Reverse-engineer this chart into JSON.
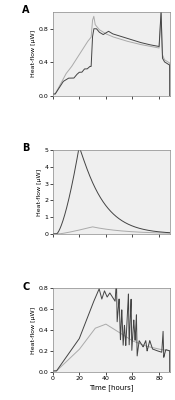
{
  "panel_labels": [
    "A",
    "B",
    "C"
  ],
  "xlabel": "Time [hours]",
  "ylabel": "Heat-flow [μW]",
  "xlim": [
    0,
    88
  ],
  "xticks": [
    0,
    20,
    40,
    60,
    80
  ],
  "panel_A": {
    "ylim": [
      0.0,
      1.0
    ],
    "yticks": [
      0.0,
      0.4,
      0.8
    ],
    "dark_color": "#444444",
    "light_color": "#aaaaaa"
  },
  "panel_B": {
    "ylim": [
      0,
      5
    ],
    "yticks": [
      0,
      1,
      2,
      3,
      4,
      5
    ],
    "dark_color": "#444444",
    "light_color": "#aaaaaa"
  },
  "panel_C": {
    "ylim": [
      0.0,
      0.8
    ],
    "yticks": [
      0.0,
      0.2,
      0.4,
      0.6,
      0.8
    ],
    "dark_color": "#444444",
    "light_color": "#aaaaaa"
  },
  "bg_color": "#efefef",
  "line_width": 0.7
}
